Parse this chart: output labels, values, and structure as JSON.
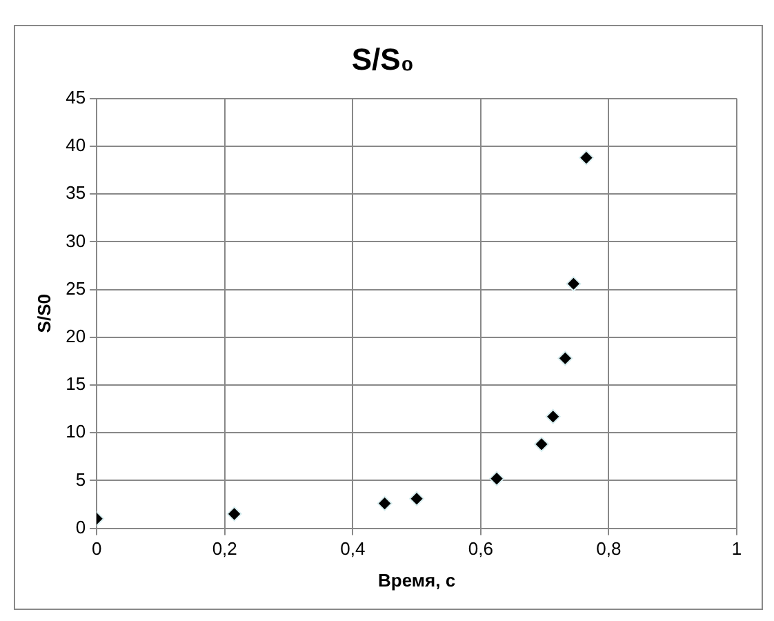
{
  "chart_data": {
    "type": "scatter",
    "title": "S/S₀",
    "xlabel": "Время, с",
    "ylabel": "S/S0",
    "x": [
      0,
      0.215,
      0.45,
      0.5,
      0.625,
      0.695,
      0.713,
      0.732,
      0.745,
      0.765
    ],
    "series": [
      {
        "color": "#000000",
        "values": [
          1,
          1.5,
          2.6,
          3.1,
          5.2,
          8.8,
          11.7,
          17.8,
          25.6,
          38.8
        ]
      }
    ],
    "xlim": [
      0,
      1
    ],
    "xticks": [
      0,
      {
        "value": 0.2,
        "label": "0,2"
      },
      {
        "value": 0.4,
        "label": "0,4"
      },
      {
        "value": 0.6,
        "label": "0,6"
      },
      {
        "value": 0.8,
        "label": "0,8"
      },
      1
    ],
    "ylim": [
      0,
      45
    ],
    "yticks": [
      0,
      5,
      10,
      15,
      20,
      25,
      30,
      35,
      40,
      45
    ],
    "grid": true,
    "legend": false,
    "marker": "diamond"
  }
}
